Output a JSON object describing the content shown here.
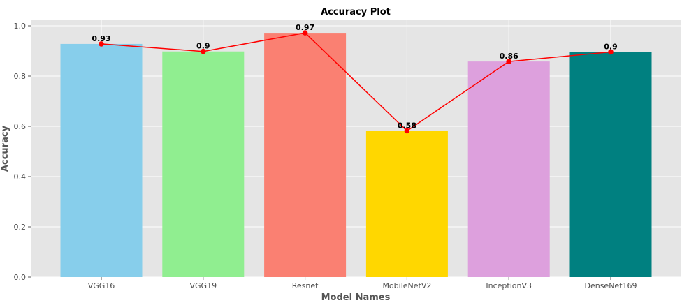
{
  "chart_data": {
    "type": "bar",
    "title": "Accuracy Plot",
    "xlabel": "Model Names",
    "ylabel": "Accuracy",
    "categories": [
      "VGG16",
      "VGG19",
      "Resnet",
      "MobileNetV2",
      "InceptionV3",
      "DenseNet169"
    ],
    "values": [
      0.928,
      0.898,
      0.972,
      0.582,
      0.858,
      0.896
    ],
    "data_labels": [
      "0.93",
      "0.9",
      "0.97",
      "0.58",
      "0.86",
      "0.9"
    ],
    "bar_colors": [
      "#87CEEB",
      "#90EE90",
      "#FA8072",
      "#FFD700",
      "#DDA0DD",
      "#008080"
    ],
    "line_overlay": {
      "color": "#FF0000",
      "marker": "circle"
    },
    "ylim": [
      0,
      1.0
    ],
    "yticks": [
      0.0,
      0.2,
      0.4,
      0.6,
      0.8,
      1.0
    ],
    "ytick_labels": [
      "0.0",
      "0.2",
      "0.4",
      "0.6",
      "0.8",
      "1.0"
    ],
    "grid": true,
    "background": "#E5E5E5"
  }
}
